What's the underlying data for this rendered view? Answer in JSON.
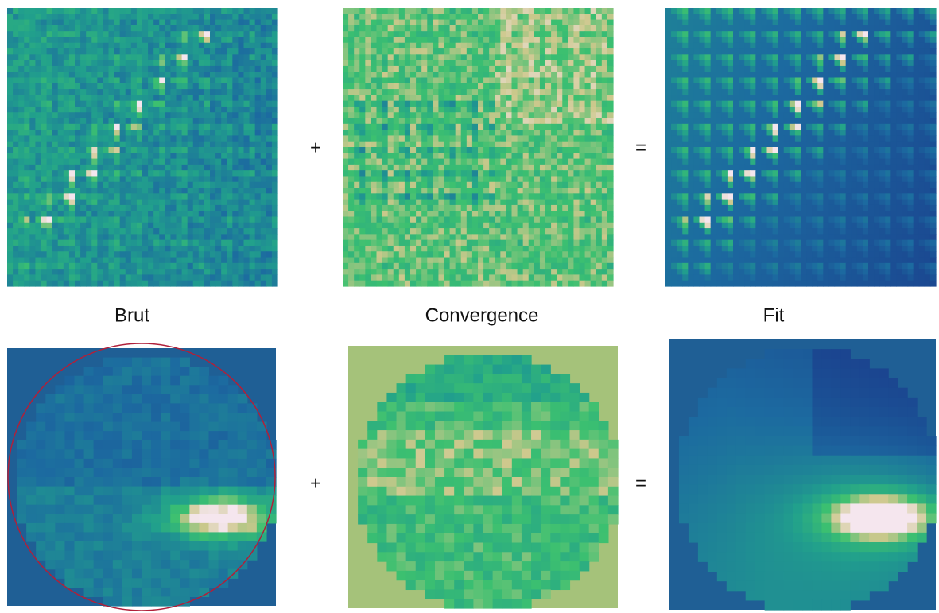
{
  "top_row": {
    "operators": [
      "+",
      "="
    ]
  },
  "captions": [
    "Brut",
    "Convergence",
    "Fit"
  ],
  "bottom_row": {
    "operators": [
      "+",
      "="
    ]
  }
}
